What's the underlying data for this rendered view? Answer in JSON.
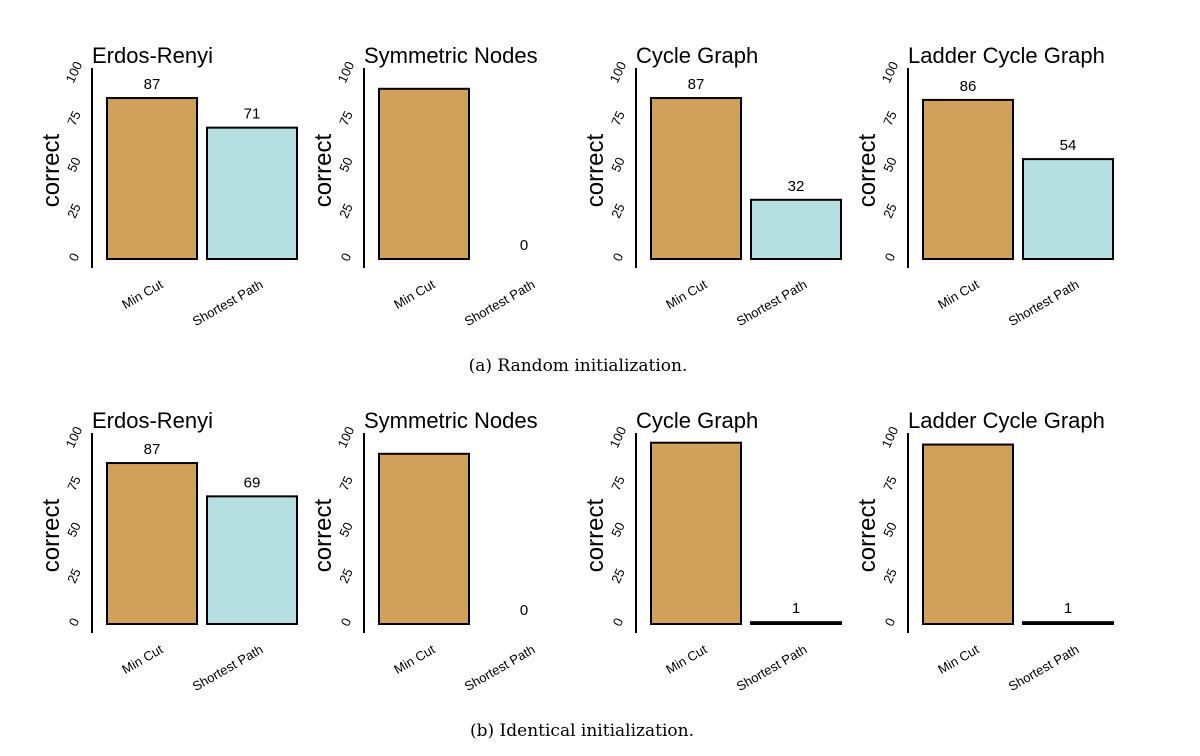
{
  "colors": {
    "series_colors": [
      "#d1a05a",
      "#b5dfe0"
    ],
    "axis": "#000000",
    "background": "#ffffff"
  },
  "chart_data": [
    {
      "type": "bar",
      "title": "Erdos-Renyi",
      "ylabel": "correct",
      "ylim": [
        0,
        100
      ],
      "yticks": [
        "0",
        "25",
        "50",
        "75",
        "100"
      ],
      "categories": [
        "Min Cut",
        "Shortest Path"
      ],
      "values": [
        87,
        71
      ],
      "data_labels": [
        "87",
        "71"
      ],
      "grid": false,
      "legend": "none"
    },
    {
      "type": "bar",
      "title": "Symmetric Nodes",
      "ylabel": "correct",
      "ylim": [
        0,
        100
      ],
      "yticks": [
        "0",
        "25",
        "50",
        "75",
        "100"
      ],
      "categories": [
        "Min Cut",
        "Shortest Path"
      ],
      "values": [
        92,
        0
      ],
      "data_labels": [
        "",
        "0"
      ],
      "grid": false,
      "legend": "none"
    },
    {
      "type": "bar",
      "title": "Cycle Graph",
      "ylabel": "correct",
      "ylim": [
        0,
        100
      ],
      "yticks": [
        "0",
        "25",
        "50",
        "75",
        "100"
      ],
      "categories": [
        "Min Cut",
        "Shortest Path"
      ],
      "values": [
        87,
        32
      ],
      "data_labels": [
        "87",
        "32"
      ],
      "grid": false,
      "legend": "none"
    },
    {
      "type": "bar",
      "title": "Ladder Cycle Graph",
      "ylabel": "correct",
      "ylim": [
        0,
        100
      ],
      "yticks": [
        "0",
        "25",
        "50",
        "75",
        "100"
      ],
      "categories": [
        "Min Cut",
        "Shortest Path"
      ],
      "values": [
        86,
        54
      ],
      "data_labels": [
        "86",
        "54"
      ],
      "grid": false,
      "legend": "none"
    },
    {
      "type": "bar",
      "title": "Erdos-Renyi",
      "ylabel": "correct",
      "ylim": [
        0,
        100
      ],
      "yticks": [
        "0",
        "25",
        "50",
        "75",
        "100"
      ],
      "categories": [
        "Min Cut",
        "Shortest Path"
      ],
      "values": [
        87,
        69
      ],
      "data_labels": [
        "87",
        "69"
      ],
      "grid": false,
      "legend": "none"
    },
    {
      "type": "bar",
      "title": "Symmetric Nodes",
      "ylabel": "correct",
      "ylim": [
        0,
        100
      ],
      "yticks": [
        "0",
        "25",
        "50",
        "75",
        "100"
      ],
      "categories": [
        "Min Cut",
        "Shortest Path"
      ],
      "values": [
        92,
        0
      ],
      "data_labels": [
        "",
        "0"
      ],
      "grid": false,
      "legend": "none"
    },
    {
      "type": "bar",
      "title": "Cycle Graph",
      "ylabel": "correct",
      "ylim": [
        0,
        100
      ],
      "yticks": [
        "0",
        "25",
        "50",
        "75",
        "100"
      ],
      "categories": [
        "Min Cut",
        "Shortest Path"
      ],
      "values": [
        98,
        1
      ],
      "data_labels": [
        "",
        "1"
      ],
      "grid": false,
      "legend": "none"
    },
    {
      "type": "bar",
      "title": "Ladder Cycle Graph",
      "ylabel": "correct",
      "ylim": [
        0,
        100
      ],
      "yticks": [
        "0",
        "25",
        "50",
        "75",
        "100"
      ],
      "categories": [
        "Min Cut",
        "Shortest Path"
      ],
      "values": [
        97,
        1
      ],
      "data_labels": [
        "",
        "1"
      ],
      "grid": false,
      "legend": "none"
    }
  ],
  "captions": {
    "row_a": "(a)  Random initialization.",
    "row_b": "(b)  Identical initialization."
  }
}
